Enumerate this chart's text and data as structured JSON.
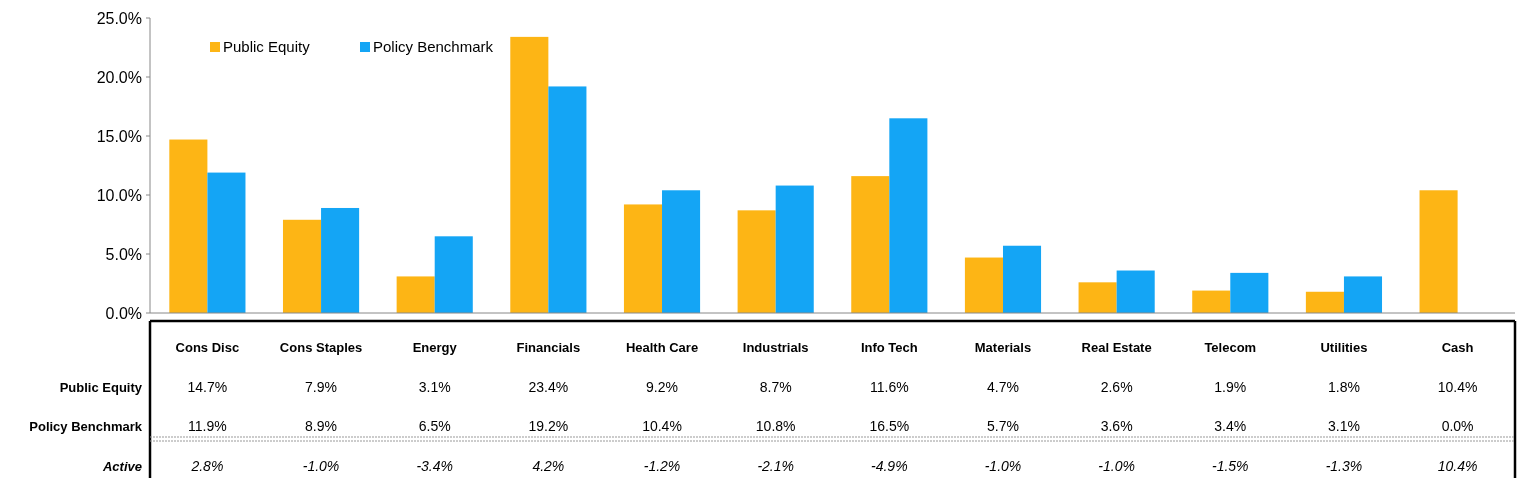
{
  "chart_data": {
    "type": "bar",
    "categories": [
      "Cons Disc",
      "Cons Staples",
      "Energy",
      "Financials",
      "Health Care",
      "Industrials",
      "Info Tech",
      "Materials",
      "Real Estate",
      "Telecom",
      "Utilities",
      "Cash"
    ],
    "series": [
      {
        "name": "Public Equity",
        "color": "#fdb515",
        "values": [
          14.7,
          7.9,
          3.1,
          23.4,
          9.2,
          8.7,
          11.6,
          4.7,
          2.6,
          1.9,
          1.8,
          10.4
        ],
        "value_labels": [
          "14.7%",
          "7.9%",
          "3.1%",
          "23.4%",
          "9.2%",
          "8.7%",
          "11.6%",
          "4.7%",
          "2.6%",
          "1.9%",
          "1.8%",
          "10.4%"
        ]
      },
      {
        "name": "Policy Benchmark",
        "color": "#14a5f5",
        "values": [
          11.9,
          8.9,
          6.5,
          19.2,
          10.4,
          10.8,
          16.5,
          5.7,
          3.6,
          3.4,
          3.1,
          0.0
        ],
        "value_labels": [
          "11.9%",
          "8.9%",
          "6.5%",
          "19.2%",
          "10.4%",
          "10.8%",
          "16.5%",
          "5.7%",
          "3.6%",
          "3.4%",
          "3.1%",
          "0.0%"
        ]
      }
    ],
    "ylim": [
      0,
      25
    ],
    "yticks": [
      {
        "value": 0,
        "label": "0.0%"
      },
      {
        "value": 5,
        "label": "5.0%"
      },
      {
        "value": 10,
        "label": "10.0%"
      },
      {
        "value": 15,
        "label": "15.0%"
      },
      {
        "value": 20,
        "label": "20.0%"
      },
      {
        "value": 25,
        "label": "25.0%"
      }
    ],
    "grid": false,
    "legend": "top left",
    "annotations": [
      "Active",
      "2.8%",
      "-1.0%",
      "-3.4%",
      "4.2%",
      "-1.2%",
      "-2.1%",
      "-4.9%",
      "-1.0%",
      "-1.0%",
      "-1.5%",
      "-1.3%",
      "10.4%"
    ]
  }
}
